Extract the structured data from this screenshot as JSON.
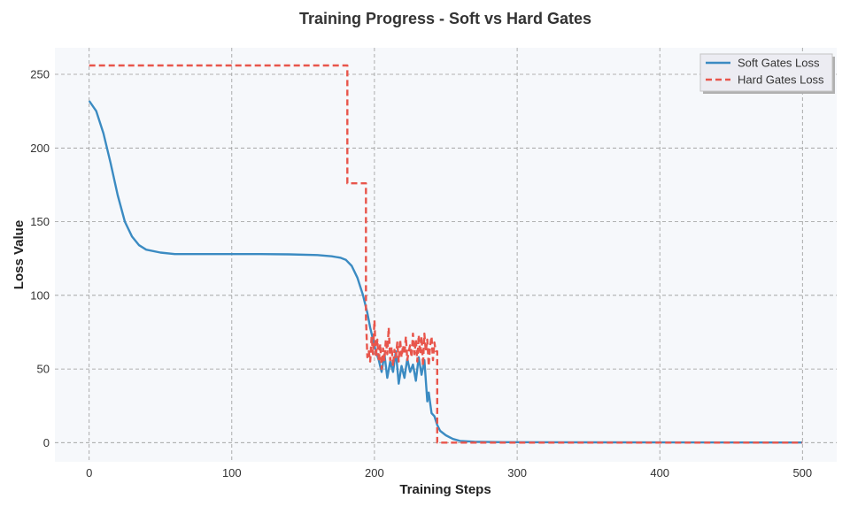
{
  "chart_data": {
    "type": "line",
    "title": "Training Progress - Soft vs Hard Gates",
    "xlabel": "Training Steps",
    "ylabel": "Loss Value",
    "xlim": [
      -24,
      524
    ],
    "ylim": [
      -13,
      268
    ],
    "xticks": [
      0,
      100,
      200,
      300,
      400,
      500
    ],
    "yticks": [
      0,
      50,
      100,
      150,
      200,
      250
    ],
    "grid": true,
    "legend_position": "top-right",
    "series": [
      {
        "name": "Soft Gates Loss",
        "color": "#3b8bc2",
        "style": "solid",
        "points": [
          [
            0,
            232
          ],
          [
            5,
            225
          ],
          [
            10,
            210
          ],
          [
            15,
            190
          ],
          [
            20,
            168
          ],
          [
            25,
            150
          ],
          [
            30,
            140
          ],
          [
            35,
            134
          ],
          [
            40,
            131
          ],
          [
            50,
            129
          ],
          [
            60,
            128
          ],
          [
            80,
            128
          ],
          [
            100,
            128
          ],
          [
            120,
            128
          ],
          [
            140,
            127.8
          ],
          [
            160,
            127.3
          ],
          [
            170,
            126.5
          ],
          [
            176,
            125.5
          ],
          [
            180,
            124
          ],
          [
            184,
            120
          ],
          [
            188,
            112
          ],
          [
            192,
            100
          ],
          [
            195,
            88
          ],
          [
            197,
            78
          ],
          [
            199,
            70
          ],
          [
            201,
            62
          ],
          [
            203,
            56
          ],
          [
            205,
            48
          ],
          [
            207,
            60
          ],
          [
            209,
            44
          ],
          [
            211,
            55
          ],
          [
            213,
            48
          ],
          [
            215,
            62
          ],
          [
            217,
            40
          ],
          [
            219,
            52
          ],
          [
            221,
            44
          ],
          [
            223,
            57
          ],
          [
            225,
            48
          ],
          [
            227,
            53
          ],
          [
            229,
            42
          ],
          [
            231,
            58
          ],
          [
            233,
            46
          ],
          [
            235,
            56
          ],
          [
            237,
            28
          ],
          [
            238,
            34
          ],
          [
            240,
            20
          ],
          [
            242,
            18
          ],
          [
            244,
            12
          ],
          [
            246,
            8
          ],
          [
            250,
            5
          ],
          [
            255,
            2.5
          ],
          [
            260,
            1.2
          ],
          [
            270,
            0.6
          ],
          [
            290,
            0.3
          ],
          [
            350,
            0.2
          ],
          [
            500,
            0.1
          ]
        ]
      },
      {
        "name": "Hard Gates Loss",
        "color": "#e8554b",
        "style": "dashed",
        "points": [
          [
            0,
            256
          ],
          [
            181,
            256
          ],
          [
            181,
            176
          ],
          [
            194,
            176
          ],
          [
            194,
            85
          ],
          [
            195,
            58
          ],
          [
            196,
            62
          ],
          [
            197,
            55
          ],
          [
            198,
            72
          ],
          [
            199,
            60
          ],
          [
            200,
            83
          ],
          [
            201,
            58
          ],
          [
            202,
            70
          ],
          [
            203,
            55
          ],
          [
            204,
            67
          ],
          [
            205,
            50
          ],
          [
            206,
            64
          ],
          [
            207,
            56
          ],
          [
            208,
            70
          ],
          [
            209,
            60
          ],
          [
            210,
            78
          ],
          [
            211,
            56
          ],
          [
            212,
            65
          ],
          [
            213,
            52
          ],
          [
            214,
            63
          ],
          [
            215,
            58
          ],
          [
            216,
            68
          ],
          [
            217,
            55
          ],
          [
            218,
            70
          ],
          [
            219,
            58
          ],
          [
            220,
            66
          ],
          [
            221,
            60
          ],
          [
            222,
            72
          ],
          [
            223,
            56
          ],
          [
            224,
            62
          ],
          [
            225,
            66
          ],
          [
            226,
            58
          ],
          [
            227,
            74
          ],
          [
            228,
            60
          ],
          [
            229,
            70
          ],
          [
            230,
            55
          ],
          [
            231,
            73
          ],
          [
            232,
            60
          ],
          [
            233,
            72
          ],
          [
            234,
            52
          ],
          [
            235,
            74
          ],
          [
            236,
            62
          ],
          [
            237,
            70
          ],
          [
            238,
            52
          ],
          [
            239,
            66
          ],
          [
            240,
            72
          ],
          [
            241,
            56
          ],
          [
            242,
            68
          ],
          [
            243,
            62
          ],
          [
            244,
            62
          ],
          [
            244,
            0
          ],
          [
            500,
            0
          ]
        ]
      }
    ]
  }
}
